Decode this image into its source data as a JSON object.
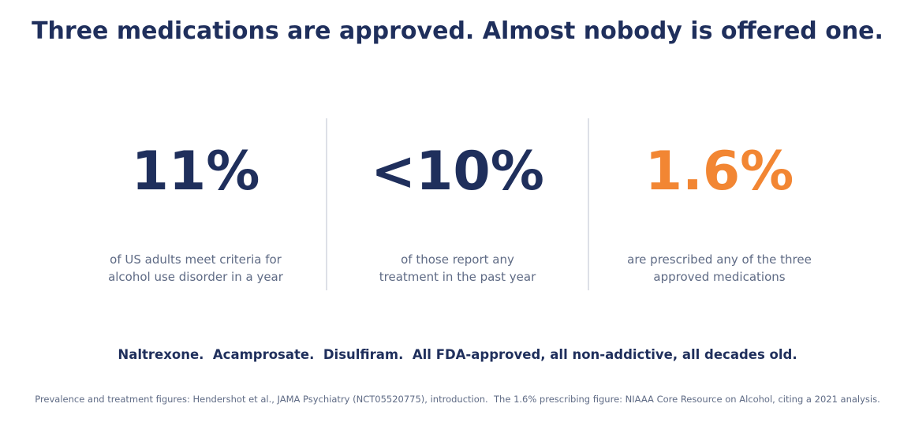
{
  "title": "Three medications are approved. Almost nobody is offered one.",
  "stats": [
    {
      "value": "11%",
      "description": "of US adults meet criteria for\nalcohol use disorder in a year",
      "color": "#1f2f5c"
    },
    {
      "value": "<10%",
      "description": "of those report any\ntreatment in the past year",
      "color": "#1f2f5c"
    },
    {
      "value": "1.6%",
      "description": "are prescribed any of the three\napproved medications",
      "color": "#f28633"
    }
  ],
  "tagline": "Naltrexone.  Acamprosate.  Disulfiram.  All FDA-approved, all non-addictive, all decades old.",
  "source": "Prevalence and treatment figures: Hendershot et al., JAMA Psychiatry (NCT05520775), introduction.  The 1.6% prescribing figure: NIAAA Core Resource on Alcohol, citing a 2021 analysis."
}
